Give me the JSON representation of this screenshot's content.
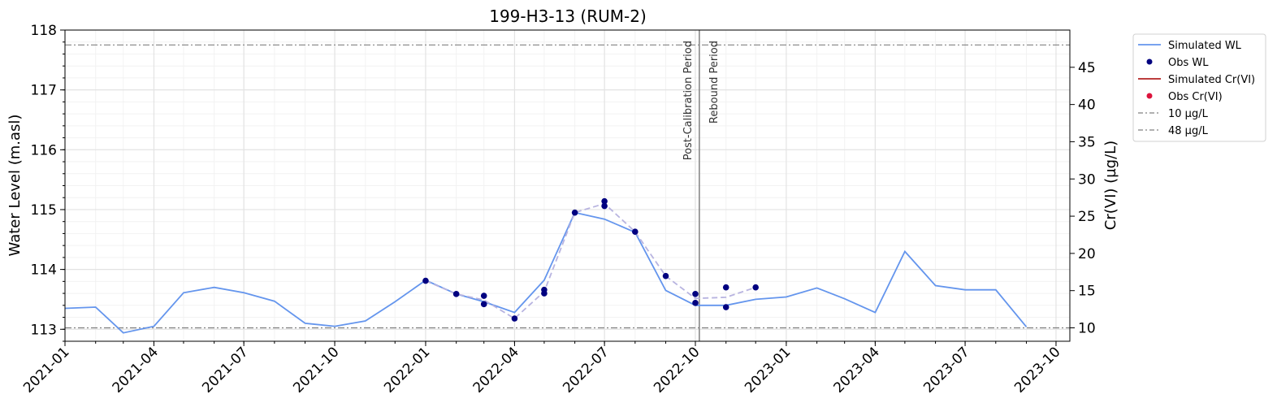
{
  "chart_data": {
    "type": "line",
    "title": "199-H3-13 (RUM-2)",
    "ylabel": "Water Level (m.asl)",
    "y2label": "Cr(VI) (µg/L)",
    "xlabel": "",
    "xlim": [
      "2021-01-01",
      "2023-10-15"
    ],
    "ylim": [
      112.8,
      118.0
    ],
    "y2lim": [
      8.2,
      50.0
    ],
    "x_ticks": [
      "2021-01",
      "2021-04",
      "2021-07",
      "2021-10",
      "2022-01",
      "2022-04",
      "2022-07",
      "2022-10",
      "2023-01",
      "2023-04",
      "2023-07",
      "2023-10"
    ],
    "y_ticks": [
      113,
      114,
      115,
      116,
      117,
      118
    ],
    "y2_ticks": [
      10,
      15,
      20,
      25,
      30,
      35,
      40,
      45
    ],
    "grid": true,
    "legend_position": "outside-top-right",
    "colors": {
      "simulated_wl": "#6495ED",
      "obs_wl": "#000080",
      "obs_trend": "#B8B4E0",
      "simulated_crvi": "#B22222",
      "obs_crvi": "#DC143C",
      "threshold": "#808080",
      "period_line": "#808080"
    },
    "legend": [
      {
        "label": "Simulated WL",
        "kind": "line",
        "color": "#6495ED"
      },
      {
        "label": "Obs WL",
        "kind": "dot",
        "color": "#000080"
      },
      {
        "label": "Simulated Cr(VI)",
        "kind": "line",
        "color": "#B22222"
      },
      {
        "label": "Obs Cr(VI)",
        "kind": "dot",
        "color": "#DC143C"
      },
      {
        "label": "10 µg/L",
        "kind": "dashdot",
        "color": "#808080"
      },
      {
        "label": "48 µg/L",
        "kind": "dashdot",
        "color": "#808080"
      }
    ],
    "thresholds": [
      {
        "label": "10 µg/L",
        "value": 10
      },
      {
        "label": "48 µg/L",
        "value": 48
      }
    ],
    "period_divider": {
      "date": "2022-10-05",
      "left_label": "Post-Calibration Period",
      "right_label": "Rebound Period"
    },
    "series": [
      {
        "name": "Simulated WL",
        "axis": "left",
        "x": [
          "2021-01-01",
          "2021-02-01",
          "2021-03-01",
          "2021-04-01",
          "2021-05-01",
          "2021-06-01",
          "2021-07-01",
          "2021-08-01",
          "2021-09-01",
          "2021-10-01",
          "2021-11-01",
          "2021-12-01",
          "2022-01-01",
          "2022-02-01",
          "2022-03-01",
          "2022-04-01",
          "2022-05-01",
          "2022-06-01",
          "2022-07-01",
          "2022-08-01",
          "2022-09-01",
          "2022-10-01",
          "2022-11-01",
          "2022-12-01",
          "2023-01-01",
          "2023-02-01",
          "2023-03-01",
          "2023-04-01",
          "2023-05-01",
          "2023-06-01",
          "2023-07-01",
          "2023-08-01",
          "2023-09-01"
        ],
        "values": [
          113.35,
          113.37,
          112.94,
          113.05,
          113.61,
          113.7,
          113.61,
          113.47,
          113.1,
          113.05,
          113.14,
          113.46,
          113.82,
          113.59,
          113.46,
          113.28,
          113.82,
          114.95,
          114.84,
          114.62,
          113.65,
          113.4,
          113.4,
          113.5,
          113.54,
          113.69,
          113.51,
          113.28,
          114.3,
          113.73,
          113.66,
          113.66,
          113.04
        ]
      },
      {
        "name": "Obs WL",
        "axis": "left",
        "x": [
          "2022-01-01",
          "2022-02-01",
          "2022-03-01",
          "2022-03-01",
          "2022-04-01",
          "2022-05-01",
          "2022-05-01",
          "2022-06-01",
          "2022-07-01",
          "2022-07-01",
          "2022-08-01",
          "2022-09-01",
          "2022-10-01",
          "2022-10-01",
          "2022-11-01",
          "2022-11-01",
          "2022-12-01"
        ],
        "values": [
          113.81,
          113.59,
          113.56,
          113.42,
          113.18,
          113.66,
          113.6,
          114.95,
          115.14,
          115.06,
          114.63,
          113.89,
          113.59,
          113.44,
          113.7,
          113.37,
          113.7
        ]
      }
    ]
  }
}
